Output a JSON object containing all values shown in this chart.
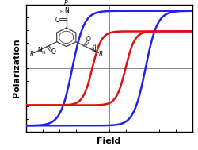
{
  "title": "",
  "xlabel": "Field",
  "ylabel": "Polarization",
  "background_color": "#ffffff",
  "frame_color": "#000000",
  "grid_color": "#888888",
  "blue_loop": {
    "color": "#2222ee",
    "linewidth": 1.8,
    "coercive_field": 0.44,
    "saturation": 0.9,
    "steepness": 7.0
  },
  "red_loop": {
    "color": "#dd1111",
    "linewidth": 1.8,
    "coercive_field": 0.2,
    "saturation": 0.58,
    "steepness": 9.0
  },
  "xlim": [
    -1.0,
    1.0
  ],
  "ylim": [
    -1.0,
    1.0
  ],
  "figsize": [
    2.5,
    1.89
  ],
  "dpi": 100,
  "mol_text_color": "#333333",
  "mol_bond_color": "#444444",
  "mol_N_color": "#222222",
  "mol_O_color": "#222222"
}
